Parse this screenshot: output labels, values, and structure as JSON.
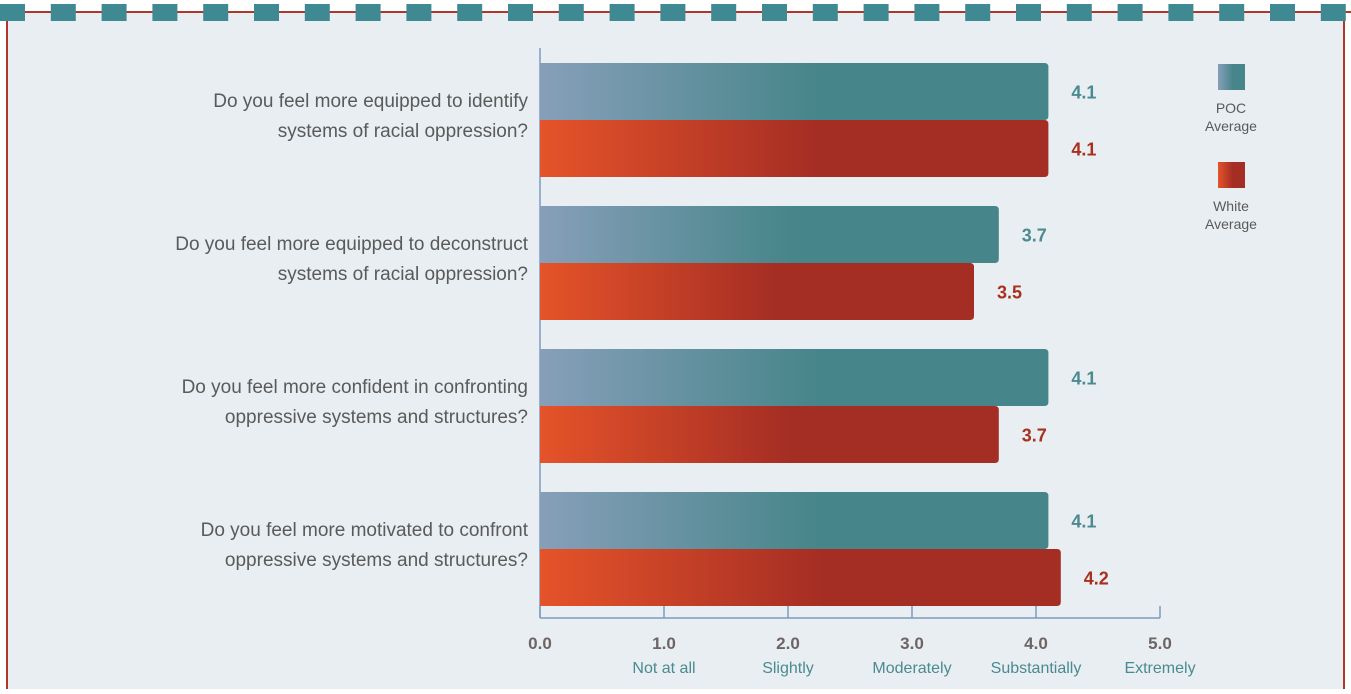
{
  "colors": {
    "background": "#E8EEF1",
    "border": "#B0362A",
    "dash_teal": "#3F8A92",
    "axis": "#7F9BC0",
    "poc_start": "#879FB9",
    "poc_end": "#468589",
    "white_start": "#E55329",
    "white_end": "#A42D24",
    "poc_label": "#4A8A90",
    "white_label": "#A8301F",
    "question_text": "#5A5A5A",
    "tick_number": "#6E6463",
    "tick_word": "#4A8A90"
  },
  "chart_data": {
    "type": "bar",
    "orientation": "horizontal",
    "categories": [
      [
        "Do you feel more equipped to identify",
        "systems of racial oppression?"
      ],
      [
        "Do you feel more equipped to deconstruct",
        "systems of racial oppression?"
      ],
      [
        "Do you feel more confident in confronting",
        "oppressive systems and structures?"
      ],
      [
        "Do you feel more motivated to confront",
        "oppressive systems and structures?"
      ]
    ],
    "series": [
      {
        "name": "POC Average",
        "legend_lines": [
          "POC",
          "Average"
        ],
        "values": [
          4.1,
          3.7,
          4.1,
          4.1
        ],
        "labels": [
          "4.1",
          "3.7",
          "4.1",
          "4.1"
        ]
      },
      {
        "name": "White Average",
        "legend_lines": [
          "White",
          "Average"
        ],
        "values": [
          4.1,
          3.5,
          3.7,
          4.2
        ],
        "labels": [
          "4.1",
          "3.5",
          "3.7",
          "4.2"
        ]
      }
    ],
    "xlim": [
      0,
      5
    ],
    "ticks": [
      {
        "value": 0,
        "label": "0.0",
        "word": ""
      },
      {
        "value": 1,
        "label": "1.0",
        "word": "Not at all"
      },
      {
        "value": 2,
        "label": "2.0",
        "word": "Slightly"
      },
      {
        "value": 3,
        "label": "3.0",
        "word": "Moderately"
      },
      {
        "value": 4,
        "label": "4.0",
        "word": "Substantially"
      },
      {
        "value": 5,
        "label": "5.0",
        "word": "Extremely"
      }
    ],
    "grid": false,
    "legend_position": "right"
  }
}
